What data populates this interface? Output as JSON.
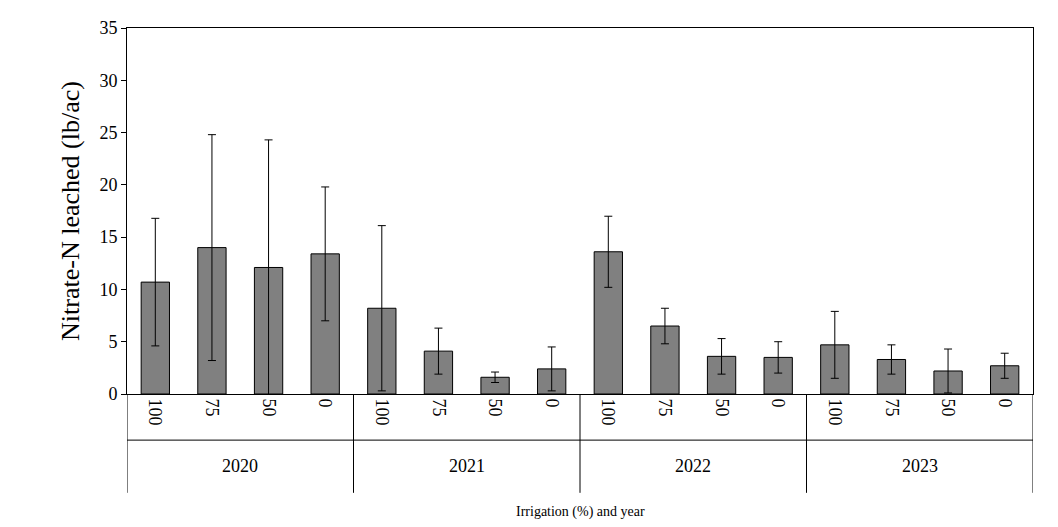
{
  "chart_data": {
    "type": "bar",
    "x_label": "Irrigation (%) and year",
    "y_label": "Nitrate-N leached (lb/ac)",
    "categories": [
      [
        "2020",
        "100"
      ],
      [
        "2020",
        "75"
      ],
      [
        "2020",
        "50"
      ],
      [
        "2020",
        "0"
      ],
      [
        "2021",
        "100"
      ],
      [
        "2021",
        "75"
      ],
      [
        "2021",
        "50"
      ],
      [
        "2021",
        "0"
      ],
      [
        "2022",
        "100"
      ],
      [
        "2022",
        "75"
      ],
      [
        "2022",
        "50"
      ],
      [
        "2022",
        "0"
      ],
      [
        "2023",
        "100"
      ],
      [
        "2023",
        "75"
      ],
      [
        "2023",
        "50"
      ],
      [
        "2023",
        "0"
      ]
    ],
    "values": [
      10.7,
      14.0,
      12.1,
      13.4,
      8.2,
      4.1,
      1.6,
      2.4,
      13.6,
      6.5,
      3.6,
      3.5,
      4.7,
      3.3,
      2.2,
      2.7
    ],
    "errors": [
      6.1,
      10.8,
      12.2,
      6.4,
      7.9,
      2.2,
      0.5,
      2.1,
      3.4,
      1.7,
      1.7,
      1.5,
      3.2,
      1.4,
      2.1,
      1.2
    ],
    "color": "#808080",
    "ylim": [
      0,
      35
    ],
    "yticks": [
      0,
      5,
      10,
      15,
      20,
      25,
      30,
      35
    ],
    "grid": false
  }
}
